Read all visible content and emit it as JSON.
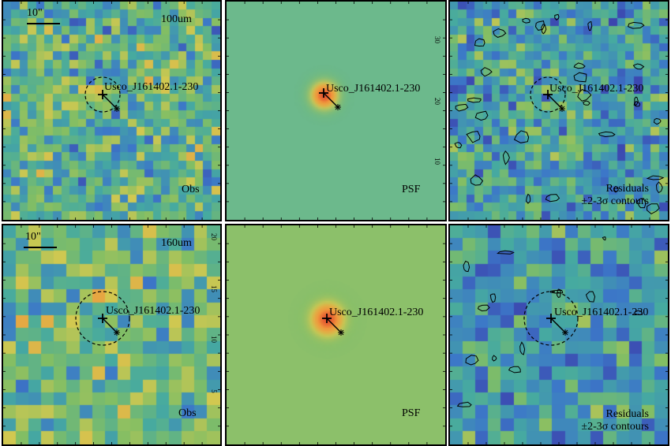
{
  "scale_bar_label": "10\"",
  "source_name": "Usco_J161402.1-230",
  "rows": [
    {
      "band": "100um",
      "panels": [
        {
          "type": "obs",
          "label": "Obs"
        },
        {
          "type": "psf",
          "label": "PSF",
          "ticks": [
            "30",
            "20",
            "10"
          ]
        },
        {
          "type": "residual",
          "label_line1": "Residuals",
          "label_line2": "±2-3σ contours"
        }
      ]
    },
    {
      "band": "160um",
      "panels": [
        {
          "type": "obs",
          "label": "Obs",
          "ticks": [
            "20",
            "15",
            "10",
            "5"
          ]
        },
        {
          "type": "psf",
          "label": "PSF"
        },
        {
          "type": "residual",
          "label_line1": "Residuals",
          "label_line2": "±2-3σ contours"
        }
      ]
    }
  ],
  "colors": {
    "background_psf_top": "#6cb98c",
    "background_psf_bottom": "#8cc06a",
    "marker": "#000000",
    "frame": "#000000"
  }
}
